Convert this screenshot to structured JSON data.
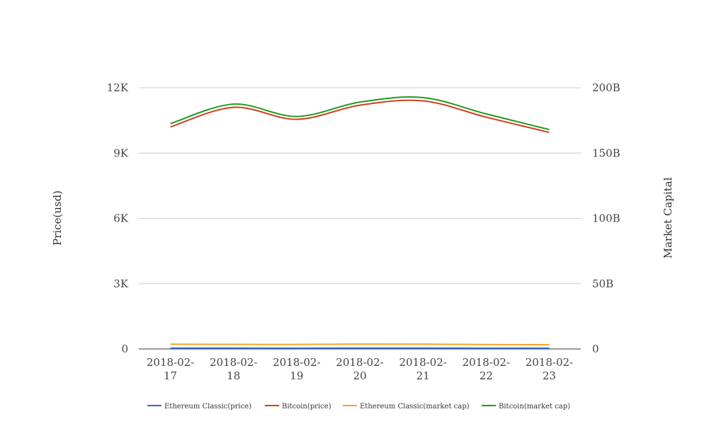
{
  "chart_data": {
    "type": "line",
    "categories": [
      "2018-02-17",
      "2018-02-18",
      "2018-02-19",
      "2018-02-20",
      "2018-02-21",
      "2018-02-22",
      "2018-02-23"
    ],
    "category_lines": [
      [
        "2018-02-",
        "17"
      ],
      [
        "2018-02-",
        "18"
      ],
      [
        "2018-02-",
        "19"
      ],
      [
        "2018-02-",
        "20"
      ],
      [
        "2018-02-",
        "21"
      ],
      [
        "2018-02-",
        "22"
      ],
      [
        "2018-02-",
        "23"
      ]
    ],
    "y_left": {
      "label": "Price(usd)",
      "range": [
        0,
        12000
      ],
      "ticks": [
        0,
        3000,
        6000,
        9000,
        12000
      ],
      "tick_labels": [
        "0",
        "3K",
        "6K",
        "9K",
        "12K"
      ]
    },
    "y_right": {
      "label": "Market Capital",
      "range": [
        0,
        200000000000
      ],
      "ticks": [
        0,
        50000000000,
        100000000000,
        150000000000,
        200000000000
      ],
      "tick_labels": [
        "0",
        "50B",
        "100B",
        "150B",
        "200B"
      ]
    },
    "grid": true,
    "legend_position": "bottom",
    "series": [
      {
        "name": "Ethereum Classic(price)",
        "axis": "left",
        "color": "#3366cc",
        "values": [
          36,
          35,
          34,
          37,
          36,
          34,
          32
        ]
      },
      {
        "name": "Bitcoin(price)",
        "axis": "left",
        "color": "#d23f1e",
        "values": [
          10200,
          11100,
          10550,
          11200,
          11400,
          10650,
          9950
        ]
      },
      {
        "name": "Ethereum Classic(market cap)",
        "axis": "right",
        "color": "#f5a623",
        "values": [
          3600000000,
          3500000000,
          3450000000,
          3750000000,
          3650000000,
          3400000000,
          3200000000
        ]
      },
      {
        "name": "Bitcoin(market cap)",
        "axis": "right",
        "color": "#1e9a1e",
        "values": [
          172500000000,
          187500000000,
          178000000000,
          189000000000,
          192500000000,
          180000000000,
          168000000000
        ]
      }
    ]
  }
}
